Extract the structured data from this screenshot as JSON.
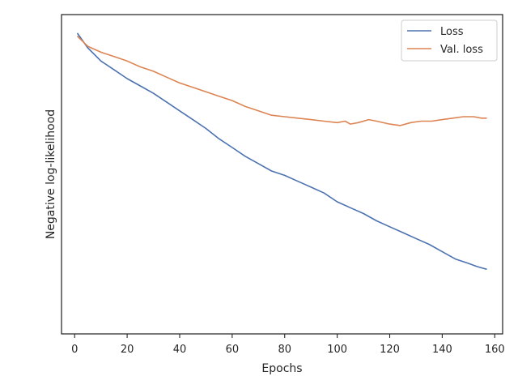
{
  "chart_data": {
    "type": "line",
    "xlabel": "Epochs",
    "ylabel": "Negative log-likelihood",
    "xlim": [
      -5,
      163
    ],
    "ylim": [
      0,
      1
    ],
    "xticks": [
      0,
      20,
      40,
      60,
      80,
      100,
      120,
      140,
      160
    ],
    "y_tick_labels_shown": false,
    "grid": false,
    "legend_position": "top-right",
    "series": [
      {
        "name": "Loss",
        "color": "#4c72b0",
        "points": [
          [
            1,
            0.97
          ],
          [
            5,
            0.92
          ],
          [
            10,
            0.875
          ],
          [
            15,
            0.845
          ],
          [
            20,
            0.815
          ],
          [
            25,
            0.79
          ],
          [
            30,
            0.765
          ],
          [
            35,
            0.735
          ],
          [
            40,
            0.705
          ],
          [
            45,
            0.675
          ],
          [
            50,
            0.645
          ],
          [
            55,
            0.61
          ],
          [
            60,
            0.58
          ],
          [
            65,
            0.55
          ],
          [
            70,
            0.525
          ],
          [
            75,
            0.5
          ],
          [
            80,
            0.485
          ],
          [
            85,
            0.465
          ],
          [
            90,
            0.445
          ],
          [
            95,
            0.425
          ],
          [
            100,
            0.395
          ],
          [
            105,
            0.375
          ],
          [
            110,
            0.355
          ],
          [
            115,
            0.33
          ],
          [
            120,
            0.31
          ],
          [
            125,
            0.29
          ],
          [
            130,
            0.27
          ],
          [
            135,
            0.25
          ],
          [
            140,
            0.225
          ],
          [
            145,
            0.2
          ],
          [
            150,
            0.185
          ],
          [
            153,
            0.175
          ],
          [
            155,
            0.17
          ],
          [
            157,
            0.165
          ]
        ]
      },
      {
        "name": "Val. loss",
        "color": "#dd8452",
        "points": [
          [
            1,
            0.96
          ],
          [
            5,
            0.925
          ],
          [
            10,
            0.905
          ],
          [
            15,
            0.89
          ],
          [
            20,
            0.875
          ],
          [
            25,
            0.855
          ],
          [
            30,
            0.84
          ],
          [
            35,
            0.82
          ],
          [
            40,
            0.8
          ],
          [
            45,
            0.785
          ],
          [
            50,
            0.77
          ],
          [
            55,
            0.755
          ],
          [
            60,
            0.74
          ],
          [
            65,
            0.72
          ],
          [
            70,
            0.705
          ],
          [
            75,
            0.69
          ],
          [
            80,
            0.685
          ],
          [
            85,
            0.68
          ],
          [
            90,
            0.675
          ],
          [
            95,
            0.67
          ],
          [
            100,
            0.665
          ],
          [
            103,
            0.67
          ],
          [
            105,
            0.66
          ],
          [
            108,
            0.665
          ],
          [
            112,
            0.675
          ],
          [
            115,
            0.67
          ],
          [
            120,
            0.66
          ],
          [
            124,
            0.655
          ],
          [
            128,
            0.665
          ],
          [
            132,
            0.67
          ],
          [
            136,
            0.67
          ],
          [
            140,
            0.675
          ],
          [
            144,
            0.68
          ],
          [
            148,
            0.685
          ],
          [
            152,
            0.685
          ],
          [
            155,
            0.68
          ],
          [
            157,
            0.68
          ]
        ]
      }
    ]
  }
}
